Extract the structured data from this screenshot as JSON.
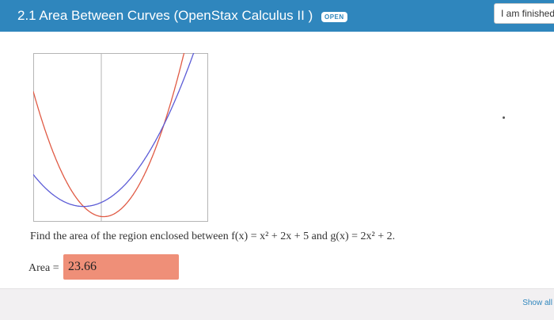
{
  "header": {
    "title": "2.1 Area Between Curves (OpenStax Calculus II )",
    "badge": "OPEN",
    "finish_label": "I am finished"
  },
  "problem": {
    "prompt": "Find the area of the region enclosed between f(x) = x² + 2x + 5 and g(x) = 2x² + 2.",
    "answer_label": "Area =",
    "answer_value": "23.66"
  },
  "footer": {
    "show_all_label": "Show all"
  },
  "colors": {
    "header": "#2f86bd",
    "f_curve": "#5b5bd6",
    "g_curve": "#e05a44",
    "answer_field": "#ef8f78"
  },
  "graph": {
    "functions": [
      {
        "name": "f(x) = x² + 2x + 5",
        "color": "#5b5bd6"
      },
      {
        "name": "g(x) = 2x² + 2",
        "color": "#e05a44"
      }
    ]
  }
}
